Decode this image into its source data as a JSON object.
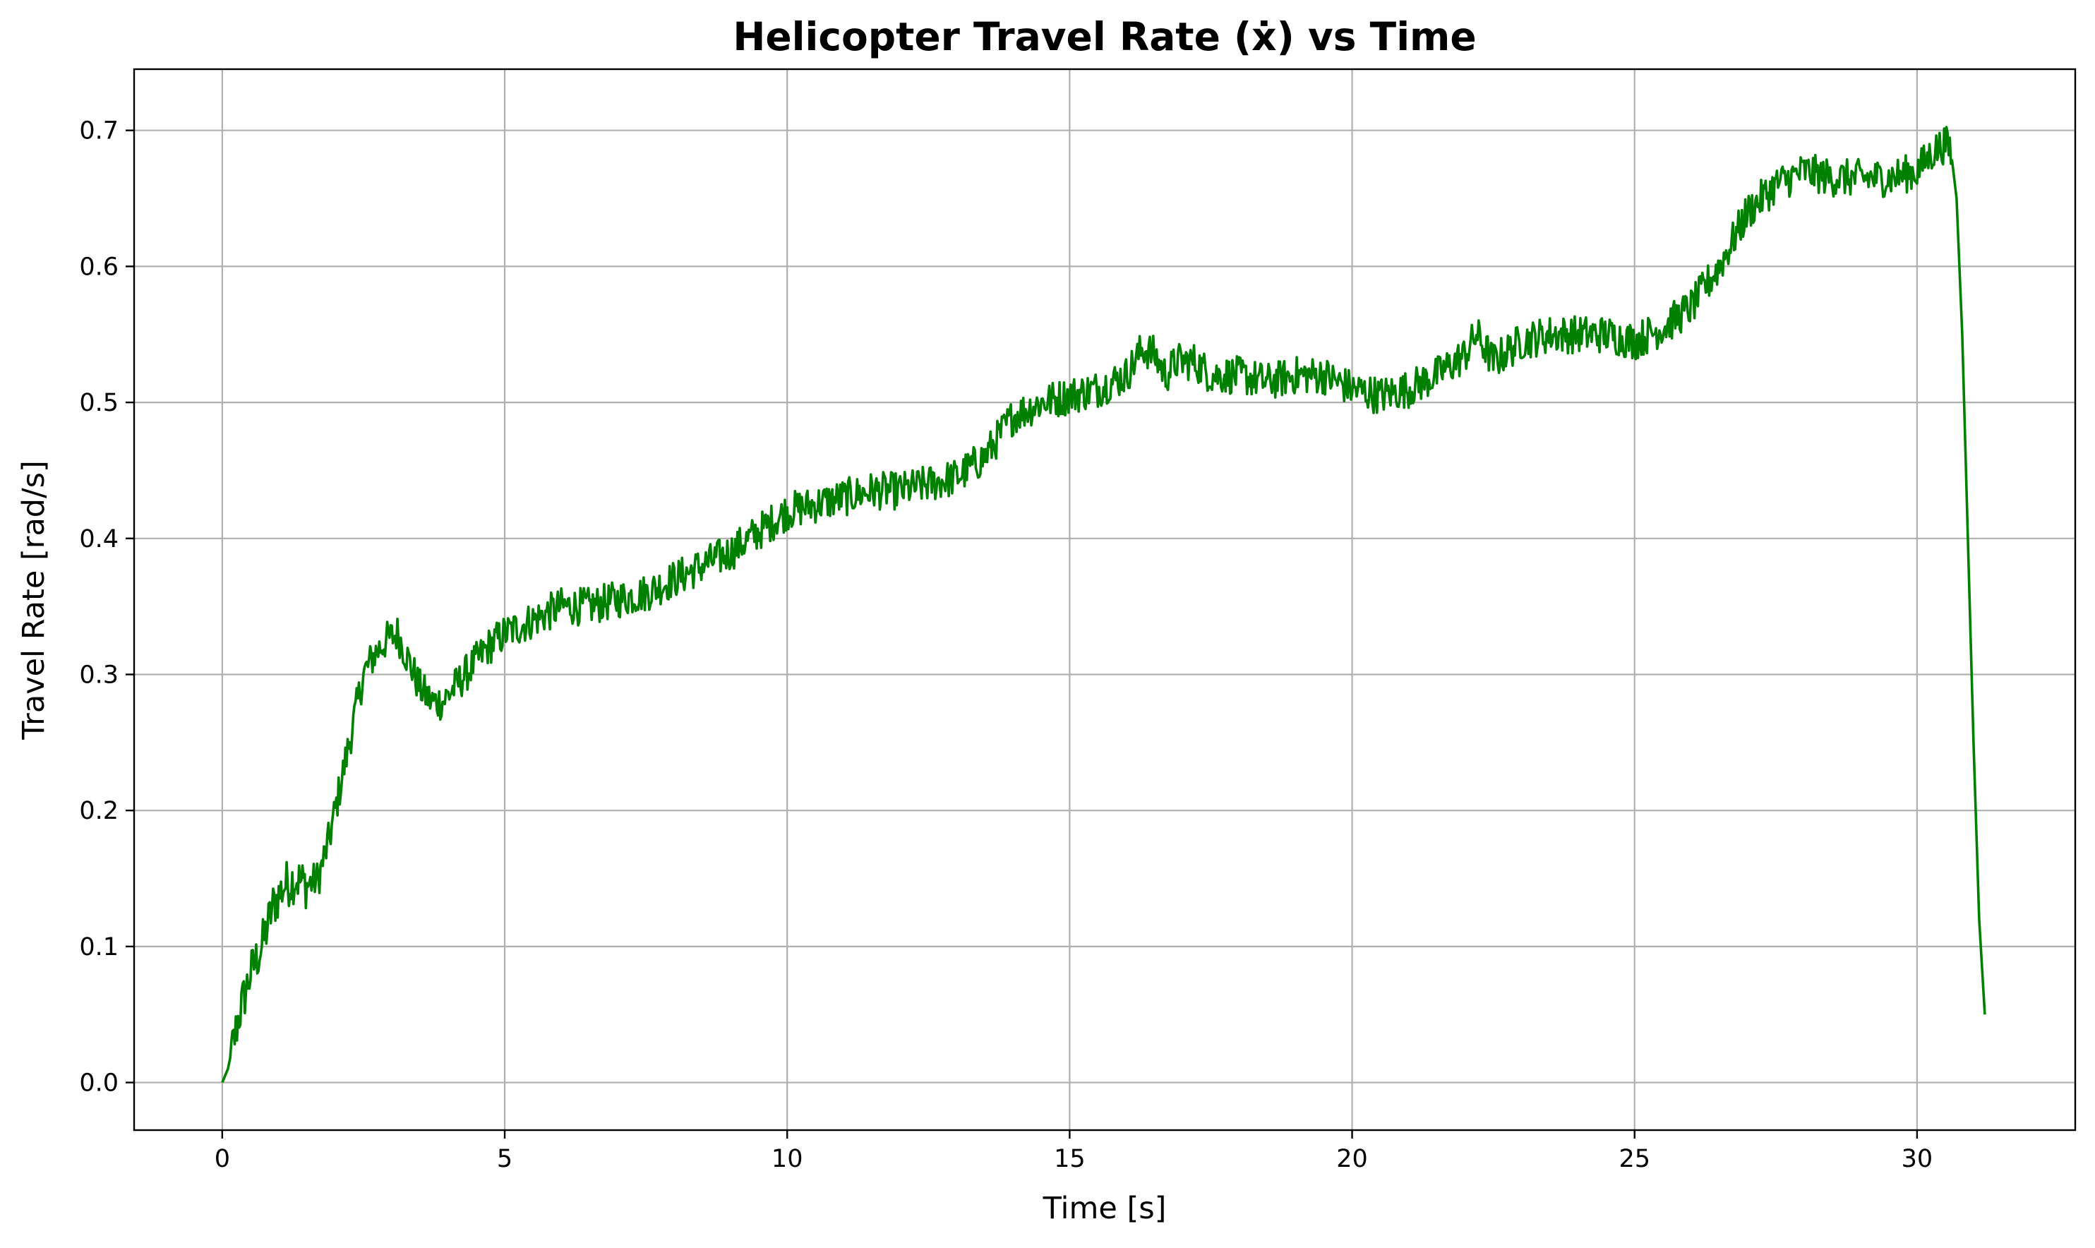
{
  "chart_data": {
    "type": "line",
    "title": "Helicopter Travel Rate (ẋ) vs Time",
    "xlabel": "Time [s]",
    "ylabel": "Travel Rate [rad/s]",
    "xlim": [
      -1.56,
      32.8
    ],
    "ylim": [
      -0.035,
      0.745
    ],
    "xticks": [
      0,
      5,
      10,
      15,
      20,
      25,
      30
    ],
    "xtick_labels": [
      "0",
      "5",
      "10",
      "15",
      "20",
      "25",
      "30"
    ],
    "yticks": [
      0.0,
      0.1,
      0.2,
      0.3,
      0.4,
      0.5,
      0.6,
      0.7
    ],
    "ytick_labels": [
      "0.0",
      "0.1",
      "0.2",
      "0.3",
      "0.4",
      "0.5",
      "0.6",
      "0.7"
    ],
    "grid": true,
    "legend": "none",
    "series": [
      {
        "color": "#008000",
        "x": [
          0.0,
          0.1,
          0.2,
          0.3,
          0.5,
          0.7,
          0.9,
          1.1,
          1.3,
          1.5,
          1.7,
          1.9,
          2.1,
          2.3,
          2.5,
          2.7,
          2.9,
          3.1,
          3.3,
          3.5,
          3.7,
          3.9,
          4.1,
          4.3,
          4.5,
          4.7,
          5.0,
          5.5,
          6.0,
          6.5,
          7.0,
          7.5,
          8.0,
          8.5,
          9.0,
          9.5,
          10.0,
          10.5,
          11.0,
          11.5,
          12.0,
          12.5,
          13.0,
          13.5,
          14.0,
          14.5,
          15.0,
          15.5,
          16.0,
          16.3,
          16.5,
          16.7,
          16.9,
          17.2,
          17.5,
          18.0,
          18.5,
          19.0,
          19.5,
          20.0,
          20.5,
          21.0,
          21.5,
          22.0,
          22.2,
          22.5,
          23.0,
          23.5,
          24.0,
          24.5,
          25.0,
          25.5,
          26.0,
          26.5,
          27.0,
          27.5,
          28.0,
          28.5,
          29.0,
          29.5,
          30.0,
          30.3,
          30.5,
          30.6,
          30.7,
          30.8,
          30.9,
          31.0,
          31.1,
          31.2
        ],
        "y": [
          0.0,
          0.01,
          0.03,
          0.05,
          0.08,
          0.1,
          0.13,
          0.145,
          0.15,
          0.145,
          0.15,
          0.18,
          0.22,
          0.26,
          0.3,
          0.315,
          0.325,
          0.33,
          0.31,
          0.29,
          0.28,
          0.28,
          0.29,
          0.3,
          0.31,
          0.32,
          0.33,
          0.34,
          0.35,
          0.35,
          0.355,
          0.36,
          0.37,
          0.38,
          0.39,
          0.405,
          0.42,
          0.425,
          0.43,
          0.435,
          0.435,
          0.44,
          0.445,
          0.46,
          0.49,
          0.5,
          0.505,
          0.51,
          0.52,
          0.54,
          0.535,
          0.52,
          0.53,
          0.53,
          0.52,
          0.52,
          0.515,
          0.52,
          0.52,
          0.51,
          0.505,
          0.51,
          0.52,
          0.535,
          0.55,
          0.53,
          0.545,
          0.55,
          0.55,
          0.55,
          0.545,
          0.555,
          0.57,
          0.6,
          0.64,
          0.66,
          0.67,
          0.665,
          0.665,
          0.665,
          0.67,
          0.685,
          0.69,
          0.685,
          0.65,
          0.55,
          0.4,
          0.25,
          0.12,
          0.05
        ]
      }
    ]
  }
}
